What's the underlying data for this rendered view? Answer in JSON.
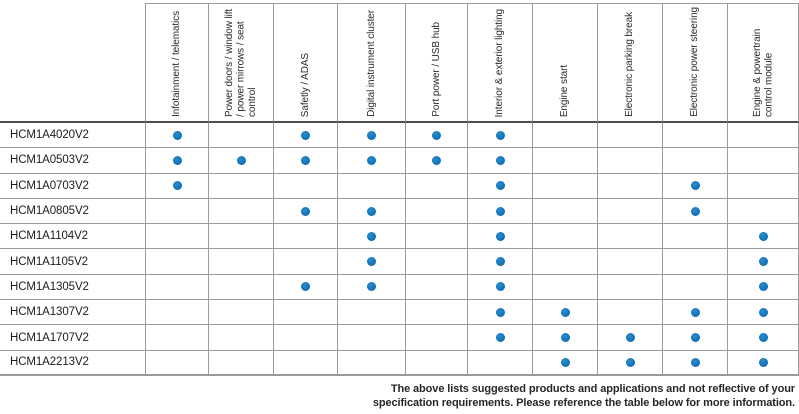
{
  "table": {
    "columns": [
      "Infotainment / telematics",
      "Power doors / window lift / power mirrows / seat control",
      "Safetly / ADAS",
      "Digital instrument cluster",
      "Port power / USB hub",
      "Interior & exterior lighting",
      "Engine start",
      "Electronic parking break",
      "Electronic power steering",
      "Engine & powertrain control module"
    ],
    "rows": [
      {
        "part": "HCM1A4020V2",
        "marks": [
          1,
          0,
          1,
          1,
          1,
          1,
          0,
          0,
          0,
          0
        ]
      },
      {
        "part": "HCM1A0503V2",
        "marks": [
          1,
          1,
          1,
          1,
          1,
          1,
          0,
          0,
          0,
          0
        ]
      },
      {
        "part": "HCM1A0703V2",
        "marks": [
          1,
          0,
          0,
          0,
          0,
          1,
          0,
          0,
          1,
          0
        ]
      },
      {
        "part": "HCM1A0805V2",
        "marks": [
          0,
          0,
          1,
          1,
          0,
          1,
          0,
          0,
          1,
          0
        ]
      },
      {
        "part": "HCM1A1104V2",
        "marks": [
          0,
          0,
          0,
          1,
          0,
          1,
          0,
          0,
          0,
          1
        ]
      },
      {
        "part": "HCM1A1105V2",
        "marks": [
          0,
          0,
          0,
          1,
          0,
          1,
          0,
          0,
          0,
          1
        ]
      },
      {
        "part": "HCM1A1305V2",
        "marks": [
          0,
          0,
          1,
          1,
          0,
          1,
          0,
          0,
          0,
          1
        ]
      },
      {
        "part": "HCM1A1307V2",
        "marks": [
          0,
          0,
          0,
          0,
          0,
          1,
          1,
          0,
          1,
          1
        ]
      },
      {
        "part": "HCM1A1707V2",
        "marks": [
          0,
          0,
          0,
          0,
          0,
          1,
          1,
          1,
          1,
          1
        ]
      },
      {
        "part": "HCM1A2213V2",
        "marks": [
          0,
          0,
          0,
          0,
          0,
          0,
          1,
          1,
          1,
          1
        ]
      }
    ],
    "dot_color": "#1274BC",
    "grid_color": "#9B9B9B",
    "header_rule_color": "#4C4C4C"
  },
  "footer": {
    "note": "The above lists suggested products and applications and not reflective of your specification requirements. Please reference the table below for more information."
  }
}
